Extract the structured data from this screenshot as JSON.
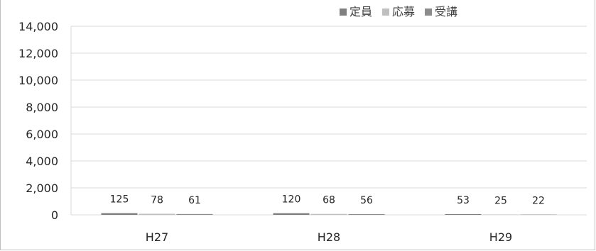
{
  "chart_data": {
    "type": "bar",
    "categories": [
      "H27",
      "H28",
      "H29"
    ],
    "series": [
      {
        "name": "定員",
        "values": [
          125,
          120,
          53
        ],
        "color": "#7f7f7f"
      },
      {
        "name": "応募",
        "values": [
          78,
          68,
          25
        ],
        "color": "#bfbfbf"
      },
      {
        "name": "受講",
        "values": [
          61,
          56,
          22
        ],
        "color": "#8c8c8c"
      }
    ],
    "yticks": [
      "0",
      "2,000",
      "4,000",
      "6,000",
      "8,000",
      "10,000",
      "12,000",
      "14,000"
    ],
    "ylim": [
      0,
      14000
    ],
    "grid": true,
    "legend_position": "top-right",
    "data_labels": true
  }
}
